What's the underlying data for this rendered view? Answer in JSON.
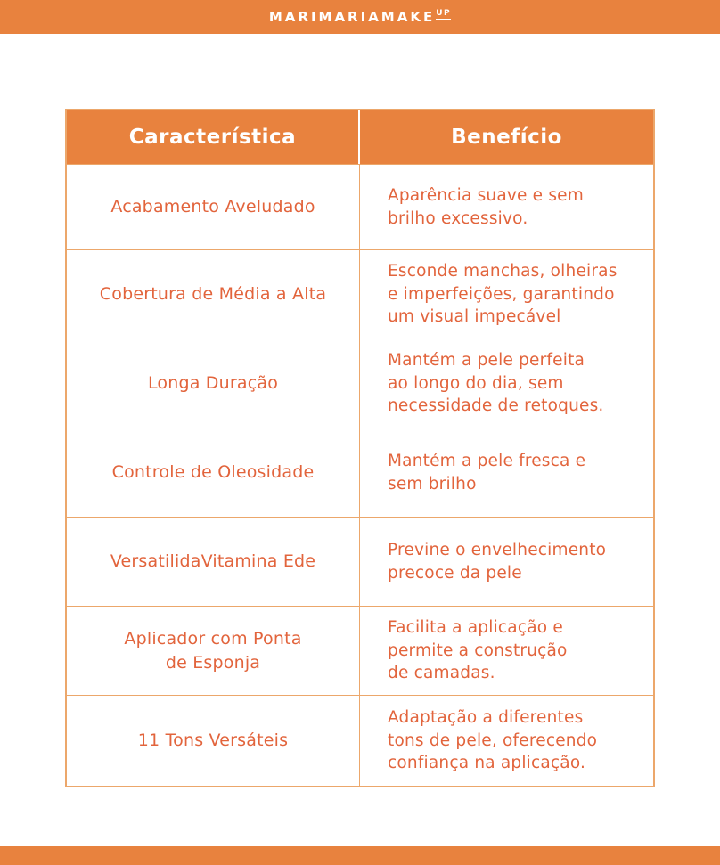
{
  "brand": {
    "logo_text": "MARIMARIAMAKE",
    "logo_sup": "UP"
  },
  "colors": {
    "brand_orange": "#E8823E",
    "cell_text_orange": "#E2643C",
    "table_border_orange": "#ECA76B",
    "header_text": "#FFFFFF"
  },
  "table": {
    "columns": [
      "Característica",
      "Benefício"
    ],
    "rows": [
      {
        "feature": "Acabamento Aveludado",
        "benefit": "Aparência suave e sem\nbrilho excessivo."
      },
      {
        "feature": "Cobertura de Média a Alta",
        "benefit": "Esconde manchas, olheiras\ne imperfeições, garantindo\num visual impecável"
      },
      {
        "feature": "Longa Duração",
        "benefit": "Mantém a pele perfeita\nao longo do dia, sem\nnecessidade de retoques."
      },
      {
        "feature": "Controle de Oleosidade",
        "benefit": "Mantém a pele fresca e\nsem brilho"
      },
      {
        "feature": "VersatilidaVitamina Ede",
        "benefit": "Previne o envelhecimento\nprecoce da pele"
      },
      {
        "feature": "Aplicador com Ponta\nde Esponja",
        "benefit": "Facilita a aplicação e\npermite a construção\nde camadas."
      },
      {
        "feature": "11 Tons Versáteis",
        "benefit": "Adaptação a diferentes\ntons de pele, oferecendo\nconfiança na aplicação."
      }
    ]
  }
}
